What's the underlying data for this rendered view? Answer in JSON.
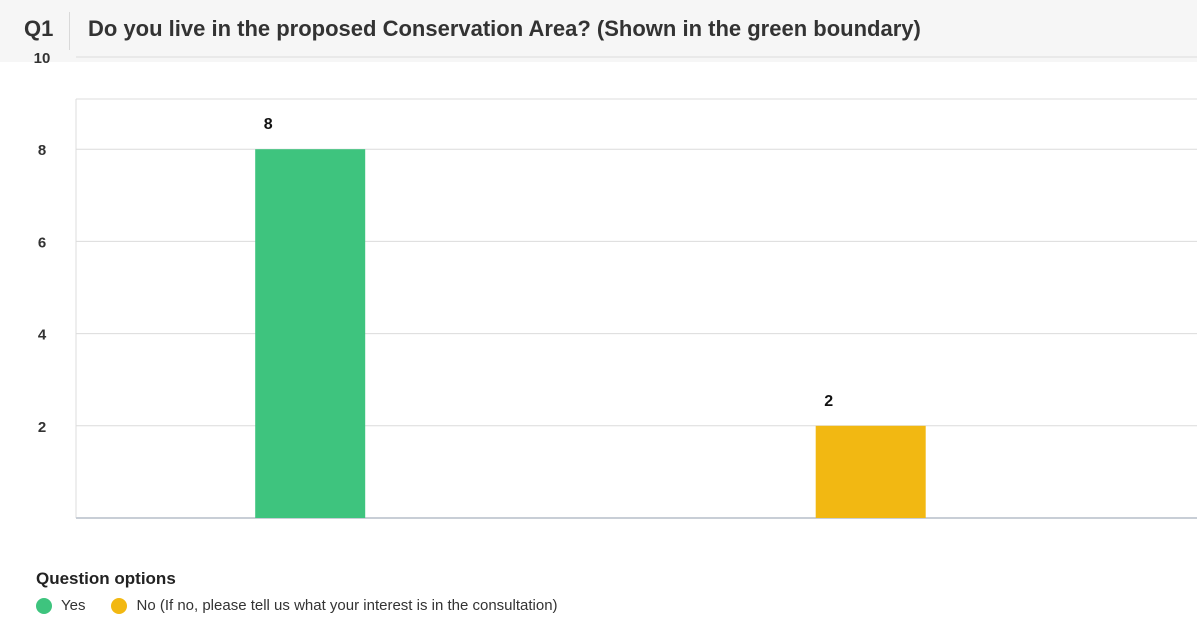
{
  "question": {
    "number": "Q1",
    "title": "Do you live in the proposed Conservation Area? (Shown in the green boundary)"
  },
  "chart_data": {
    "type": "bar",
    "categories": [
      "Yes",
      "No (If no, please tell us what your interest is in the consultation)"
    ],
    "values": [
      8,
      2
    ],
    "data_labels": [
      "8",
      "2"
    ],
    "colors": [
      "#3ec47e",
      "#f2b812"
    ],
    "yticks": [
      "2",
      "4",
      "6",
      "8",
      "10"
    ],
    "ylim": [
      0,
      10
    ],
    "grid": true,
    "legend_position": "bottom-left"
  },
  "legend": {
    "title": "Question options",
    "items": [
      {
        "label": "Yes",
        "color": "#3ec47e"
      },
      {
        "label": "No (If no, please tell us what your interest is in the consultation)",
        "color": "#f2b812"
      }
    ]
  }
}
